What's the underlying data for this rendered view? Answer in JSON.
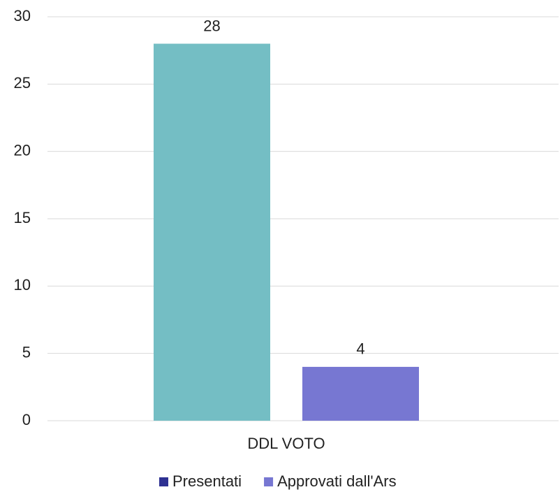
{
  "chart_data": {
    "type": "bar",
    "categories": [
      "DDL VOTO"
    ],
    "series": [
      {
        "name": "Presentati",
        "color": "#74bec4",
        "legend_color": "#2e3192",
        "values": [
          28
        ]
      },
      {
        "name": "Approvati dall'Ars",
        "color": "#7777d2",
        "legend_color": "#7777d2",
        "values": [
          4
        ]
      }
    ],
    "ylim": [
      0,
      30
    ],
    "yticks": [
      0,
      5,
      10,
      15,
      20,
      25,
      30
    ],
    "grid": true,
    "legend": "bottom"
  }
}
